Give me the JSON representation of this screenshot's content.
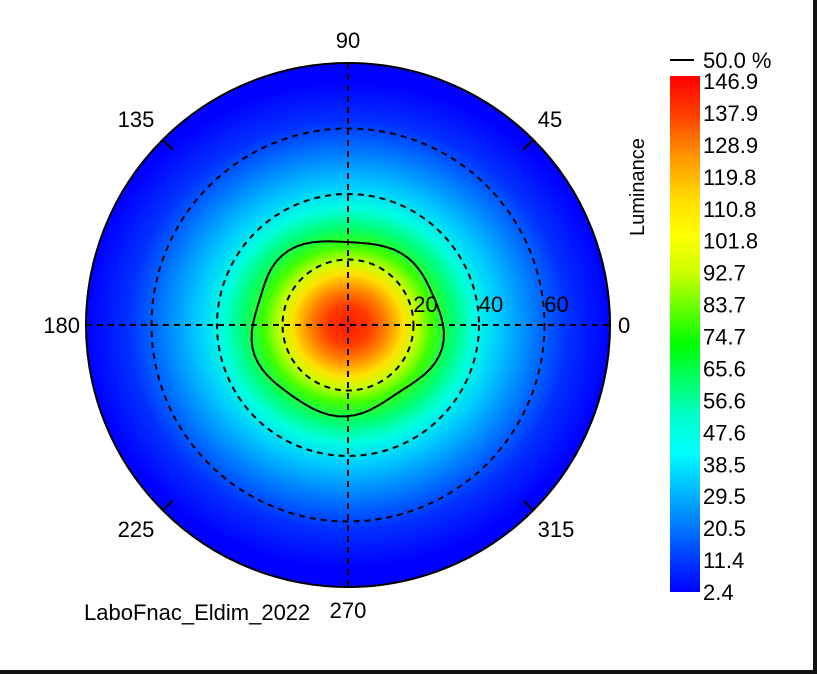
{
  "chart_data": {
    "type": "heatmap",
    "subtype": "polar-conoscope",
    "source_label": "LaboFnac_Eldim_2022",
    "colorbar": {
      "label": "Luminance",
      "contour_label": "50.0 %",
      "ticks": [
        "146.9",
        "137.9",
        "128.9",
        "119.8",
        "110.8",
        "101.8",
        "92.7",
        "83.7",
        "74.7",
        "65.6",
        "56.6",
        "47.6",
        "38.5",
        "29.5",
        "20.5",
        "11.4",
        "2.4"
      ],
      "min": 2.4,
      "max": 146.9,
      "colors": [
        "#ff0000",
        "#ff4400",
        "#ff9900",
        "#ffdd00",
        "#ffff00",
        "#ccff00",
        "#66ff00",
        "#00ff00",
        "#00ff66",
        "#00ffcc",
        "#00ffff",
        "#00aaff",
        "#0055ff",
        "#0000ff"
      ]
    },
    "angle_labels": [
      "0",
      "45",
      "90",
      "135",
      "180",
      "225",
      "270",
      "315"
    ],
    "radius_labels": [
      "20",
      "40",
      "60"
    ],
    "radius_max_deg": 80,
    "rings_deg": [
      20,
      40,
      60
    ],
    "peak_luminance": 146.9,
    "peak_center_deg": {
      "x": -2,
      "y": 0
    },
    "contour_50pct_value": 73.45
  }
}
